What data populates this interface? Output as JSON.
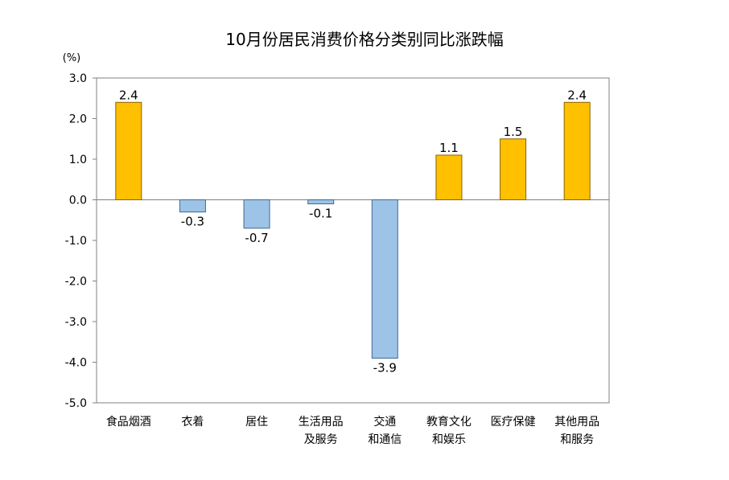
{
  "chart_data": {
    "type": "bar",
    "title": "10月份居民消费价格分类别同比涨跌幅",
    "unit": "(%)",
    "ylim": [
      -5.0,
      3.0
    ],
    "yticks": [
      "3.0",
      "2.0",
      "1.0",
      "0.0",
      "-1.0",
      "-2.0",
      "-3.0",
      "-4.0",
      "-5.0"
    ],
    "categories": [
      [
        "食品烟酒"
      ],
      [
        "衣着"
      ],
      [
        "居住"
      ],
      [
        "生活用品",
        "及服务"
      ],
      [
        "交通",
        "和通信"
      ],
      [
        "教育文化",
        "和娱乐"
      ],
      [
        "医疗保健"
      ],
      [
        "其他用品",
        "和服务"
      ]
    ],
    "values": [
      2.4,
      -0.3,
      -0.7,
      -0.1,
      -3.9,
      1.1,
      1.5,
      2.4
    ],
    "value_labels": [
      "2.4",
      "-0.3",
      "-0.7",
      "-0.1",
      "-3.9",
      "1.1",
      "1.5",
      "2.4"
    ],
    "grid": false,
    "colors": {
      "positive": "#FFC000",
      "positive_stroke": "#8a6200",
      "negative": "#9DC3E6",
      "negative_stroke": "#3f6a95",
      "axis": "#808080"
    }
  }
}
